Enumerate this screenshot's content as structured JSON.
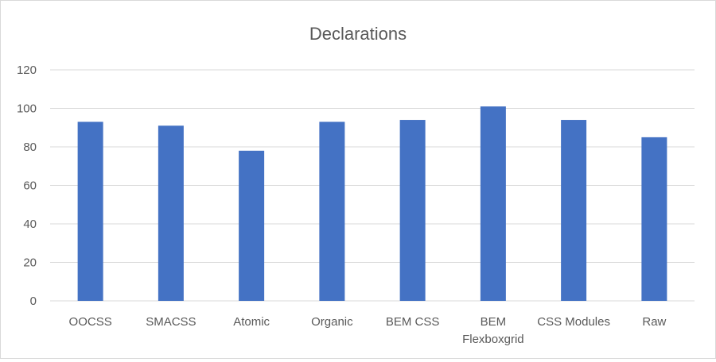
{
  "chart_data": {
    "type": "bar",
    "title": "Declarations",
    "categories": [
      "OOCSS",
      "SMACSS",
      "Atomic",
      "Organic",
      "BEM CSS",
      "BEM Flexboxgrid",
      "CSS Modules",
      "Raw"
    ],
    "category_lines": [
      [
        "OOCSS"
      ],
      [
        "SMACSS"
      ],
      [
        "Atomic"
      ],
      [
        "Organic"
      ],
      [
        "BEM CSS"
      ],
      [
        "BEM",
        "Flexboxgrid"
      ],
      [
        "CSS Modules"
      ],
      [
        "Raw"
      ]
    ],
    "values": [
      93,
      91,
      78,
      93,
      94,
      101,
      94,
      85
    ],
    "ylim": [
      0,
      120
    ],
    "yticks": [
      0,
      20,
      40,
      60,
      80,
      100,
      120
    ],
    "grid": true,
    "bar_color": "#4472c4",
    "grid_color": "#d9d9d9",
    "xlabel": "",
    "ylabel": ""
  }
}
